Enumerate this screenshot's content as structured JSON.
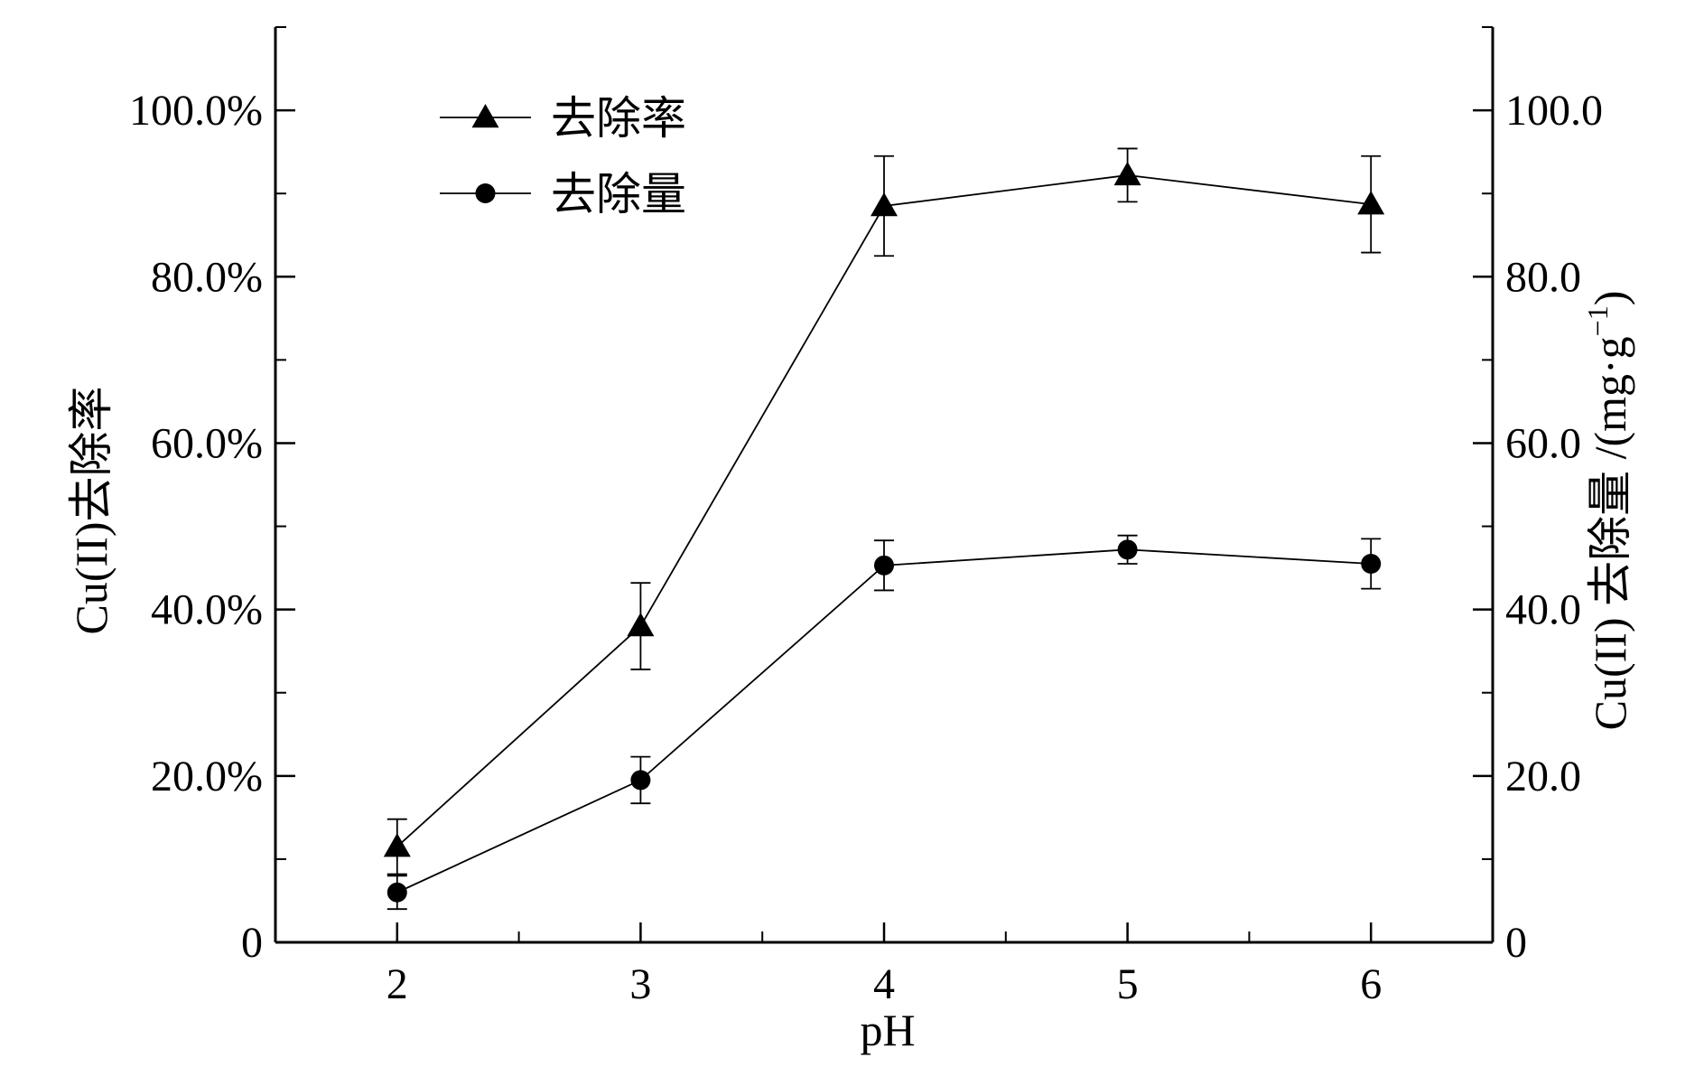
{
  "chart_data": {
    "type": "line",
    "xlabel": "pH",
    "x_ticks": [
      "2",
      "3",
      "4",
      "5",
      "6"
    ],
    "xlim": [
      1.5,
      6.5
    ],
    "y_left": {
      "label": "Cu(II)去除率",
      "lim": [
        0,
        110
      ],
      "ticks": [
        0,
        20,
        40,
        60,
        80,
        100
      ],
      "tick_labels": [
        "0",
        "20.0%",
        "40.0%",
        "60.0%",
        "80.0%",
        "100.0%"
      ]
    },
    "y_right": {
      "label_main": "Cu(II) 去除量 /(mg·g",
      "label_sup": "−1",
      "label_close": ")",
      "lim": [
        0,
        110
      ],
      "ticks": [
        0,
        20,
        40,
        60,
        80,
        100
      ],
      "tick_labels": [
        "0",
        "20.0",
        "40.0",
        "60.0",
        "80.0",
        "100.0"
      ]
    },
    "legend_position": "top-left",
    "series": [
      {
        "name": "去除率",
        "marker": "triangle",
        "axis": "left",
        "x": [
          2,
          3,
          4,
          5,
          6
        ],
        "y": [
          11.5,
          38.0,
          88.5,
          92.2,
          88.7
        ],
        "err": [
          3.3,
          5.2,
          6.0,
          3.2,
          5.8
        ]
      },
      {
        "name": "去除量",
        "marker": "circle",
        "axis": "right",
        "x": [
          2,
          3,
          4,
          5,
          6
        ],
        "y": [
          6.0,
          19.5,
          45.3,
          47.2,
          45.5
        ],
        "err": [
          2.0,
          2.8,
          3.0,
          1.7,
          3.0
        ]
      }
    ]
  }
}
